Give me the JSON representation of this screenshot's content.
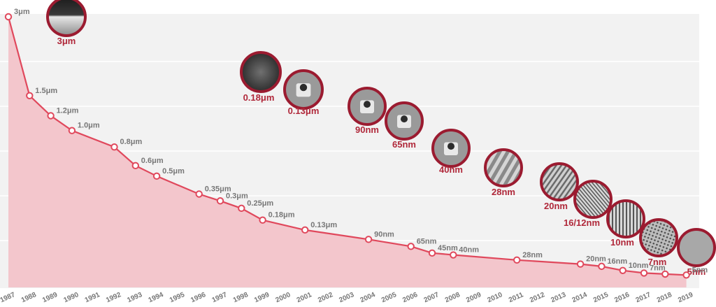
{
  "chart_data": {
    "type": "line",
    "title": "",
    "xlabel": "",
    "ylabel": "",
    "grid": true,
    "colors": {
      "line": "#e0485c",
      "area": "#f3c6cc",
      "node_ring": "#9b1b30",
      "node_label": "#b0283a",
      "label": "#777777",
      "background": "#f2f2f2"
    },
    "x": [
      1987,
      1988,
      1989,
      1990,
      1991,
      1992,
      1993,
      1994,
      1995,
      1996,
      1997,
      1998,
      1999,
      2000,
      2001,
      2002,
      2003,
      2004,
      2005,
      2006,
      2007,
      2008,
      2009,
      2010,
      2011,
      2012,
      2013,
      2014,
      2015,
      2016,
      2017,
      2018,
      2019
    ],
    "x_labels": [
      "1987",
      "1988",
      "1989",
      "1990",
      "1991",
      "1992",
      "1993",
      "1994",
      "1995",
      "1996",
      "1997",
      "1998",
      "1999",
      "2000",
      "2001",
      "2002",
      "2003",
      "2004",
      "2005",
      "2006",
      "2007",
      "2008",
      "2009",
      "2010",
      "2011",
      "2012",
      "2013",
      "2014",
      "2015",
      "2016",
      "2017",
      "2018",
      "2019"
    ],
    "series": [
      {
        "points": [
          {
            "x": 1987,
            "y": 3000,
            "label": "3μm"
          },
          {
            "x": 1988,
            "y": 1500,
            "label": "1.5μm"
          },
          {
            "x": 1989,
            "y": 1200,
            "label": "1.2μm"
          },
          {
            "x": 1990,
            "y": 1000,
            "label": "1.0μm"
          },
          {
            "x": 1992,
            "y": 800,
            "label": "0.8μm"
          },
          {
            "x": 1993,
            "y": 600,
            "label": "0.6μm"
          },
          {
            "x": 1994,
            "y": 500,
            "label": "0.5μm"
          },
          {
            "x": 1996,
            "y": 350,
            "label": "0.35μm"
          },
          {
            "x": 1997,
            "y": 300,
            "label": "0.3μm"
          },
          {
            "x": 1998,
            "y": 250,
            "label": "0.25μm"
          },
          {
            "x": 1999,
            "y": 180,
            "label": "0.18μm"
          },
          {
            "x": 2001,
            "y": 130,
            "label": "0.13μm"
          },
          {
            "x": 2004,
            "y": 90,
            "label": "90nm"
          },
          {
            "x": 2006,
            "y": 65,
            "label": "65nm"
          },
          {
            "x": 2007,
            "y": 45,
            "label": "45nm"
          },
          {
            "x": 2008,
            "y": 40,
            "label": "40nm"
          },
          {
            "x": 2011,
            "y": 28,
            "label": "28nm"
          },
          {
            "x": 2014,
            "y": 20,
            "label": "20nm"
          },
          {
            "x": 2015,
            "y": 16,
            "label": "16nm"
          },
          {
            "x": 2016,
            "y": 10,
            "label": "10nm"
          },
          {
            "x": 2017,
            "y": 7,
            "label": "7nm"
          },
          {
            "x": 2018,
            "y": null,
            "label": ""
          },
          {
            "x": 2019,
            "y": 5,
            "label": "5nm"
          }
        ]
      }
    ],
    "node_images": [
      {
        "label": "3μm",
        "pattern": "rough-surface"
      },
      {
        "label": "0.18μm",
        "pattern": "dark-blur"
      },
      {
        "label": "0.13μm",
        "pattern": "gate-cross-section"
      },
      {
        "label": "90nm",
        "pattern": "gate-cross-section"
      },
      {
        "label": "65nm",
        "pattern": "gate-cross-section"
      },
      {
        "label": "40nm",
        "pattern": "gate-cross-section"
      },
      {
        "label": "28nm",
        "pattern": "fin-blocks"
      },
      {
        "label": "20nm",
        "pattern": "diagonal-lines"
      },
      {
        "label": "16/12nm",
        "pattern": "dense-diagonal"
      },
      {
        "label": "10nm",
        "pattern": "vertical-lines"
      },
      {
        "label": "7nm",
        "pattern": "dot-grid"
      },
      {
        "label": "5nm",
        "pattern": "flat-grey"
      }
    ]
  }
}
